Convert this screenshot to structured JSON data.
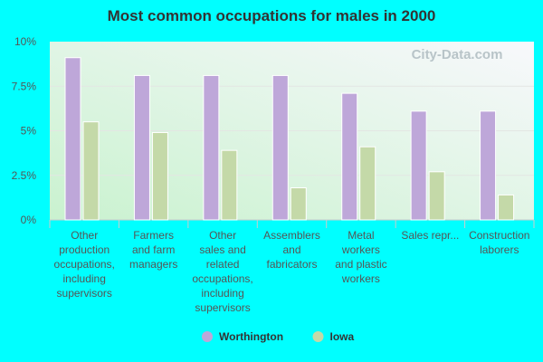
{
  "chart_data": {
    "type": "bar",
    "title": "Most common occupations for males in 2000",
    "categories": [
      [
        "Other",
        "production",
        "occupations,",
        "including",
        "supervisors"
      ],
      [
        "Farmers",
        "and farm",
        "managers"
      ],
      [
        "Other",
        "sales and",
        "related",
        "occupations,",
        "including",
        "supervisors"
      ],
      [
        "Assemblers",
        "and",
        "fabricators"
      ],
      [
        "Metal",
        "workers",
        "and plastic",
        "workers"
      ],
      [
        "Sales repr..."
      ],
      [
        "Construction",
        "laborers"
      ]
    ],
    "series": [
      {
        "name": "Worthington",
        "color": "#bea7d9",
        "values": [
          9.1,
          8.1,
          8.1,
          8.1,
          7.1,
          6.1,
          6.1
        ]
      },
      {
        "name": "Iowa",
        "color": "#c4d9a8",
        "values": [
          5.5,
          4.9,
          3.9,
          1.8,
          4.1,
          2.7,
          1.4
        ]
      }
    ],
    "yticks": [
      "0%",
      "2.5%",
      "5%",
      "7.5%",
      "10%"
    ],
    "ylim": [
      0,
      10
    ],
    "unit": "%",
    "grid": true,
    "legend": "bottom",
    "watermark": "City-Data.com"
  }
}
